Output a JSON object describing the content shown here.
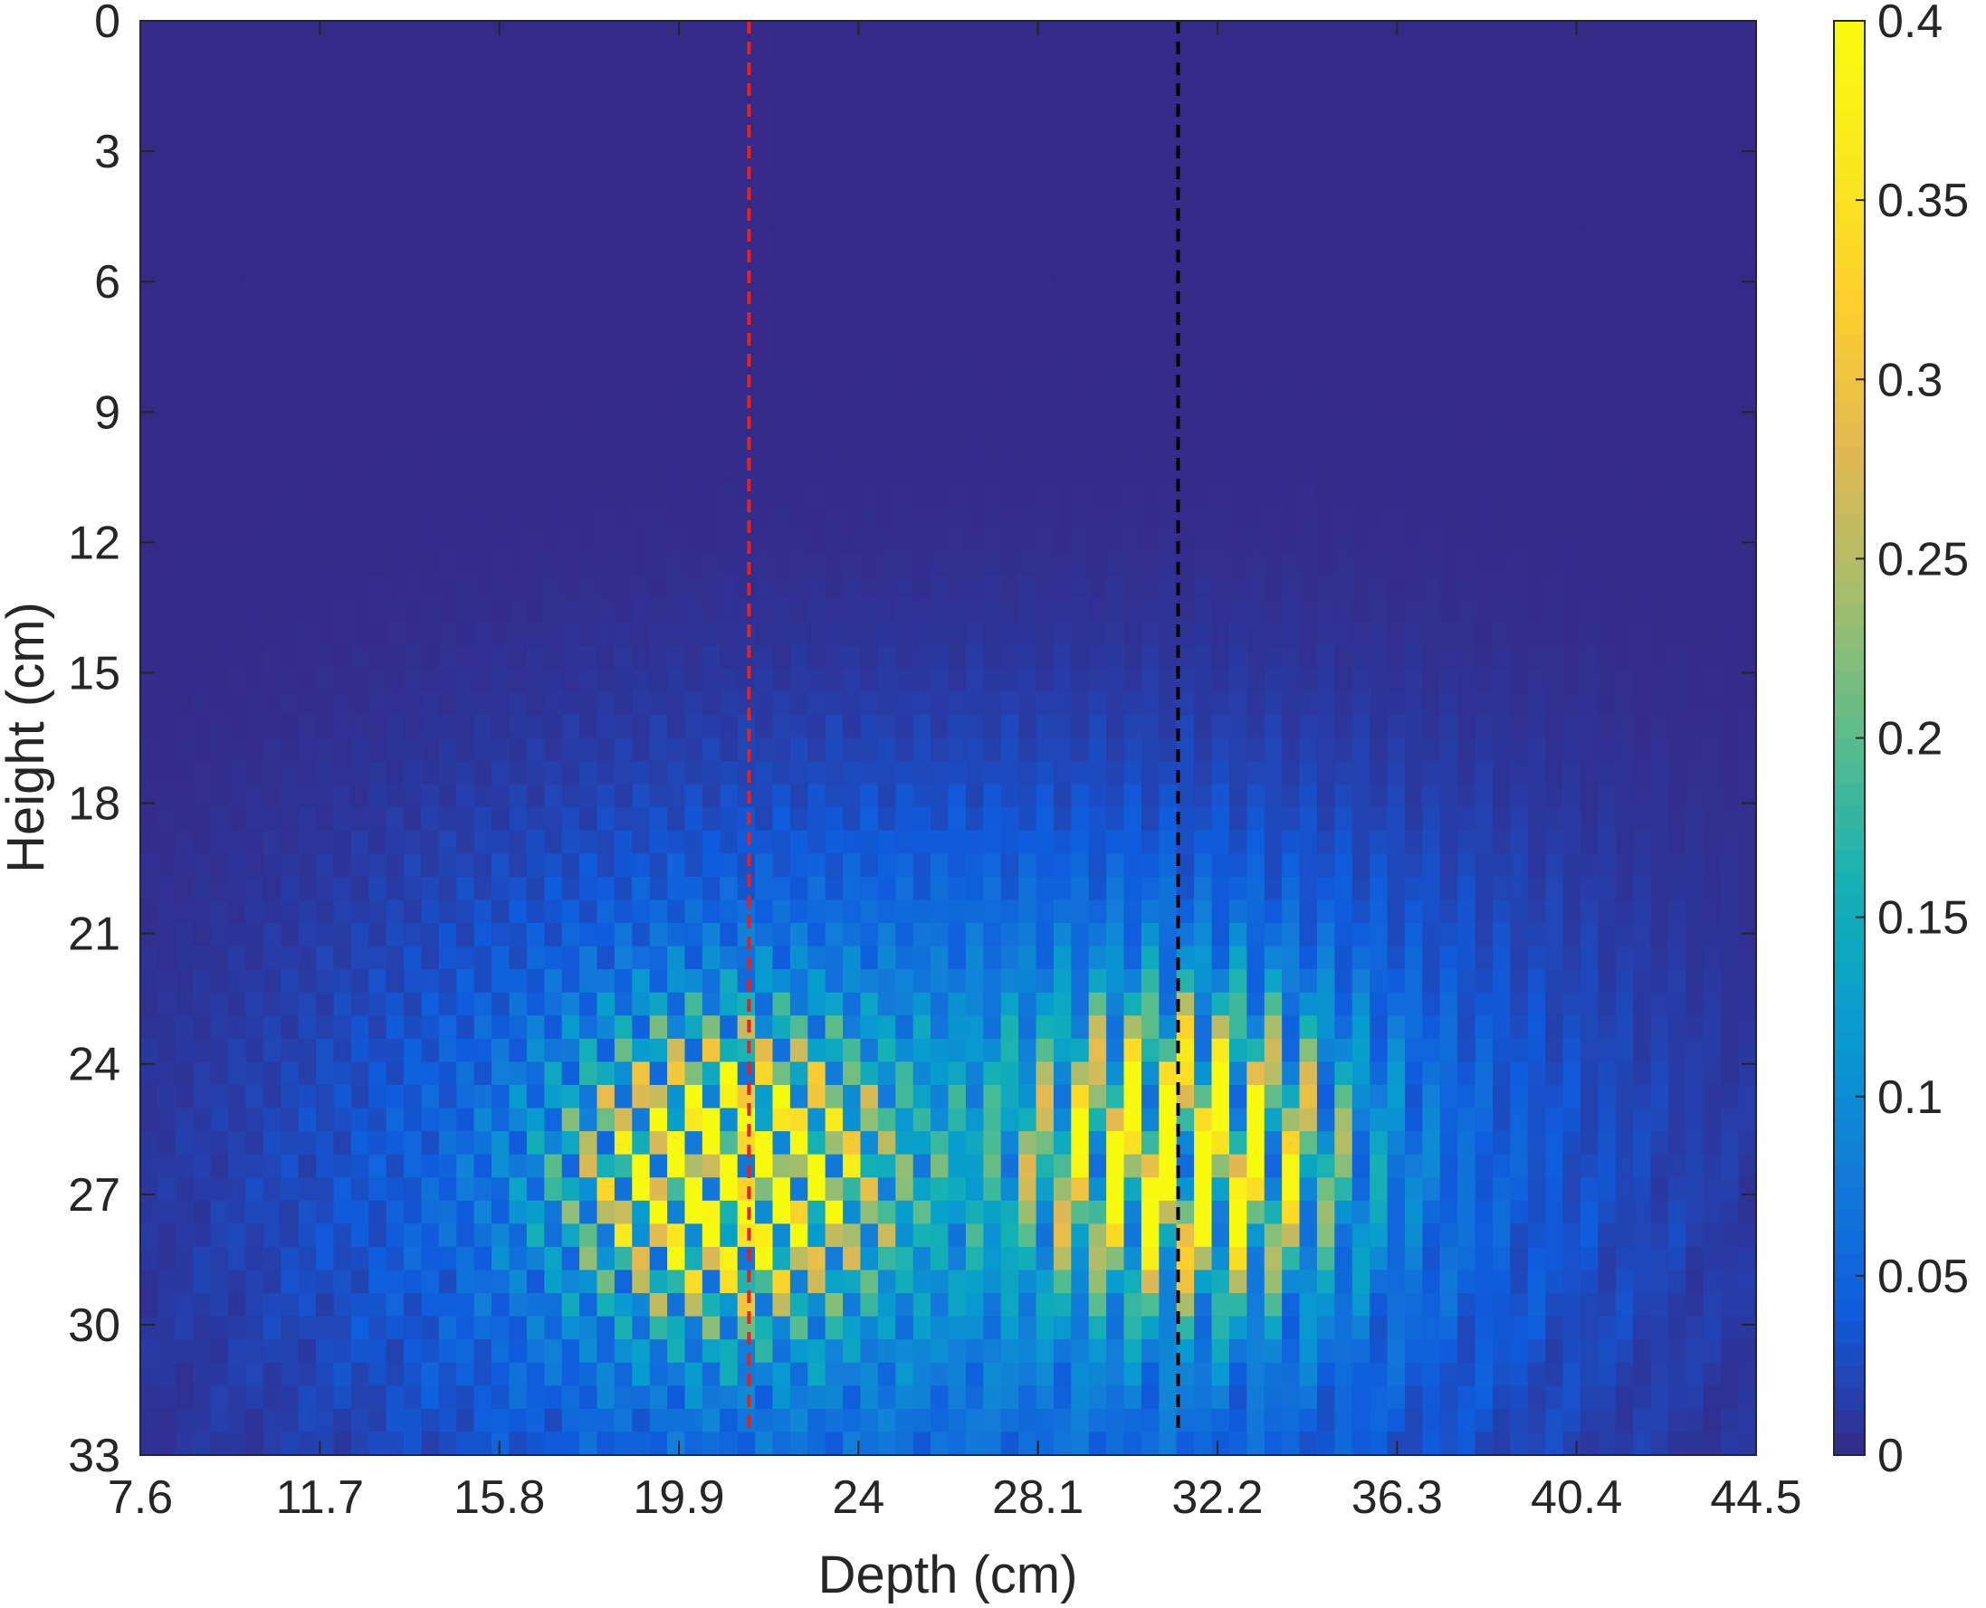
{
  "chart_data": {
    "type": "heatmap",
    "title": "",
    "xlabel": "Depth (cm)",
    "ylabel": "Height (cm)",
    "xlim": [
      7.6,
      44.5
    ],
    "ylim": [
      0,
      33
    ],
    "y_reversed": true,
    "x_ticks": [
      7.6,
      11.7,
      15.8,
      19.9,
      24,
      28.1,
      32.2,
      36.3,
      40.4,
      44.5
    ],
    "y_ticks": [
      0,
      3,
      6,
      9,
      12,
      15,
      18,
      21,
      24,
      27,
      30,
      33
    ],
    "colorbar": {
      "colormap": "parula",
      "range": [
        0,
        0.4
      ],
      "ticks": [
        0,
        0.05,
        0.1,
        0.15,
        0.2,
        0.25,
        0.3,
        0.35,
        0.4
      ]
    },
    "reference_lines": [
      {
        "x": 21.5,
        "color": "#e8211b",
        "style": "dashed"
      },
      {
        "x": 31.3,
        "color": "#000000",
        "style": "dashed"
      }
    ],
    "hotspots": [
      {
        "center_depth": 21.0,
        "center_height": 26.5,
        "peak_value": 0.4
      },
      {
        "center_depth": 31.5,
        "center_height": 26.0,
        "peak_value": 0.4
      }
    ],
    "grid": false
  }
}
